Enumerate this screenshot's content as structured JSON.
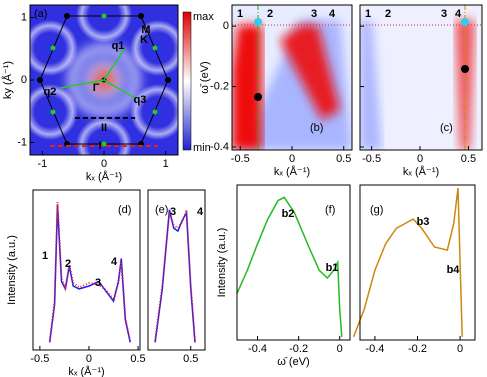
{
  "chart_data": [
    {
      "type": "heatmap",
      "label": "(a)",
      "xlabel": "kₓ (Å⁻¹)",
      "ylabel": "ky (Å⁻¹)",
      "xlim": [
        -1.2,
        1.2
      ],
      "ylim": [
        -1.2,
        1.2
      ],
      "xticks": [
        -1,
        0,
        1
      ],
      "yticks": [
        -1,
        0,
        1
      ],
      "colorbar": [
        "max",
        "min"
      ],
      "annotations": [
        {
          "text": "M",
          "color": "#22aa22"
        },
        {
          "text": "K",
          "color": "#000"
        },
        {
          "text": "q1",
          "color": "#22aa22"
        },
        {
          "text": "q2",
          "color": "#22aa22"
        },
        {
          "text": "q3",
          "color": "#22aa22"
        },
        {
          "text": "Γ",
          "color": "#000"
        },
        {
          "text": "II",
          "color": "#000"
        },
        {
          "text": "I",
          "color": "#dd2222"
        }
      ]
    },
    {
      "type": "image",
      "label": "(b)",
      "xlabel": "kₓ (Å⁻¹)",
      "ylabel": "ω̄ (eV)",
      "xlim": [
        -0.58,
        0.58
      ],
      "ylim": [
        -0.41,
        0.07
      ],
      "xticks": [
        -0.5,
        0,
        0.5
      ],
      "yticks": [
        0,
        -0.2,
        -0.4
      ],
      "annotations": [
        {
          "text": "1",
          "color": "#fff"
        },
        {
          "text": "2",
          "color": "#fff"
        },
        {
          "text": "3",
          "color": "#fff"
        },
        {
          "text": "4",
          "color": "#fff"
        }
      ]
    },
    {
      "type": "image",
      "label": "(c)",
      "xlabel": "kₓ (Å⁻¹)",
      "xlim": [
        -0.62,
        0.64
      ],
      "ylim": [
        -0.41,
        0.07
      ],
      "xticks": [
        -0.5,
        0,
        0.5
      ],
      "yticks": [
        0,
        -0.2,
        -0.4
      ],
      "annotations": [
        {
          "text": "1",
          "color": "#fff"
        },
        {
          "text": "2",
          "color": "#fff"
        },
        {
          "text": "3",
          "color": "#fff"
        },
        {
          "text": "4",
          "color": "#fff"
        }
      ]
    },
    {
      "type": "line",
      "label": "(d)",
      "xlabel": "kₓ (Å⁻¹)",
      "ylabel": "Intensity (a.u.)",
      "xlim": [
        -0.57,
        0.52
      ],
      "ylim": [
        0,
        1.05
      ],
      "xticks": [
        -0.5,
        0,
        0.5
      ],
      "x": [
        -0.4,
        -0.35,
        -0.32,
        -0.28,
        -0.24,
        -0.2,
        -0.16,
        -0.1,
        0,
        0.1,
        0.18,
        0.25,
        0.3,
        0.33,
        0.37,
        0.42
      ],
      "series": [
        {
          "color": "#1a1aff",
          "values": [
            0.05,
            0.3,
            0.95,
            0.45,
            0.4,
            0.55,
            0.42,
            0.4,
            0.42,
            0.45,
            0.38,
            0.32,
            0.45,
            0.6,
            0.2,
            0.05
          ]
        },
        {
          "color": "#ee2222",
          "values": [
            0.06,
            0.32,
            0.97,
            0.47,
            0.41,
            0.56,
            0.44,
            0.41,
            0.44,
            0.43,
            0.39,
            0.33,
            0.44,
            0.58,
            0.21,
            0.06
          ]
        }
      ],
      "annotations": [
        {
          "text": "1",
          "color": "#000"
        },
        {
          "text": "2",
          "color": "#000"
        },
        {
          "text": "3",
          "color": "#000"
        },
        {
          "text": "4",
          "color": "#000"
        }
      ]
    },
    {
      "type": "line",
      "label": "(e)",
      "xlim": [
        0.2,
        0.6
      ],
      "ylim": [
        0,
        1.05
      ],
      "xticks": [
        0.5
      ],
      "x": [
        0.25,
        0.3,
        0.35,
        0.38,
        0.41,
        0.44,
        0.47,
        0.5,
        0.53
      ],
      "series": [
        {
          "color": "#1a1aff",
          "values": [
            0.05,
            0.4,
            0.92,
            0.8,
            0.78,
            0.85,
            0.9,
            0.4,
            0.05
          ]
        },
        {
          "color": "#ee2222",
          "values": [
            0.06,
            0.42,
            0.9,
            0.82,
            0.8,
            0.84,
            0.92,
            0.42,
            0.06
          ]
        }
      ],
      "annotations": [
        {
          "text": "3",
          "color": "#000"
        },
        {
          "text": "4",
          "color": "#000"
        }
      ]
    },
    {
      "type": "line",
      "label": "(f)",
      "xlabel": "ω̄ (eV)",
      "ylabel": "Intensity (a.u.)",
      "xlim": [
        -0.5,
        0.05
      ],
      "ylim": [
        0,
        1
      ],
      "xticks": [
        -0.4,
        -0.2,
        0
      ],
      "x": [
        -0.5,
        -0.45,
        -0.4,
        -0.35,
        -0.3,
        -0.27,
        -0.22,
        -0.15,
        -0.1,
        -0.06,
        -0.03,
        -0.01,
        0,
        0.01
      ],
      "series": [
        {
          "color": "#22bb22",
          "values": [
            0.3,
            0.45,
            0.62,
            0.78,
            0.9,
            0.92,
            0.82,
            0.6,
            0.45,
            0.4,
            0.45,
            0.5,
            0.2,
            0.02
          ]
        }
      ],
      "annotations": [
        {
          "text": "b2",
          "color": "#000"
        },
        {
          "text": "b1",
          "color": "#33bbdd"
        }
      ]
    },
    {
      "type": "line",
      "label": "(g)",
      "xlim": [
        -0.47,
        0.07
      ],
      "ylim": [
        0,
        1
      ],
      "xticks": [
        -0.4,
        -0.2,
        0
      ],
      "x": [
        -0.5,
        -0.45,
        -0.4,
        -0.35,
        -0.3,
        -0.22,
        -0.18,
        -0.12,
        -0.06,
        -0.03,
        -0.01,
        0,
        0.01
      ],
      "series": [
        {
          "color": "#cc8811",
          "values": [
            0.02,
            0.2,
            0.45,
            0.62,
            0.72,
            0.78,
            0.72,
            0.6,
            0.58,
            0.75,
            0.98,
            0.5,
            0.02
          ]
        }
      ],
      "annotations": [
        {
          "text": "b3",
          "color": "#000"
        },
        {
          "text": "b4",
          "color": "#33bbdd"
        }
      ]
    }
  ]
}
